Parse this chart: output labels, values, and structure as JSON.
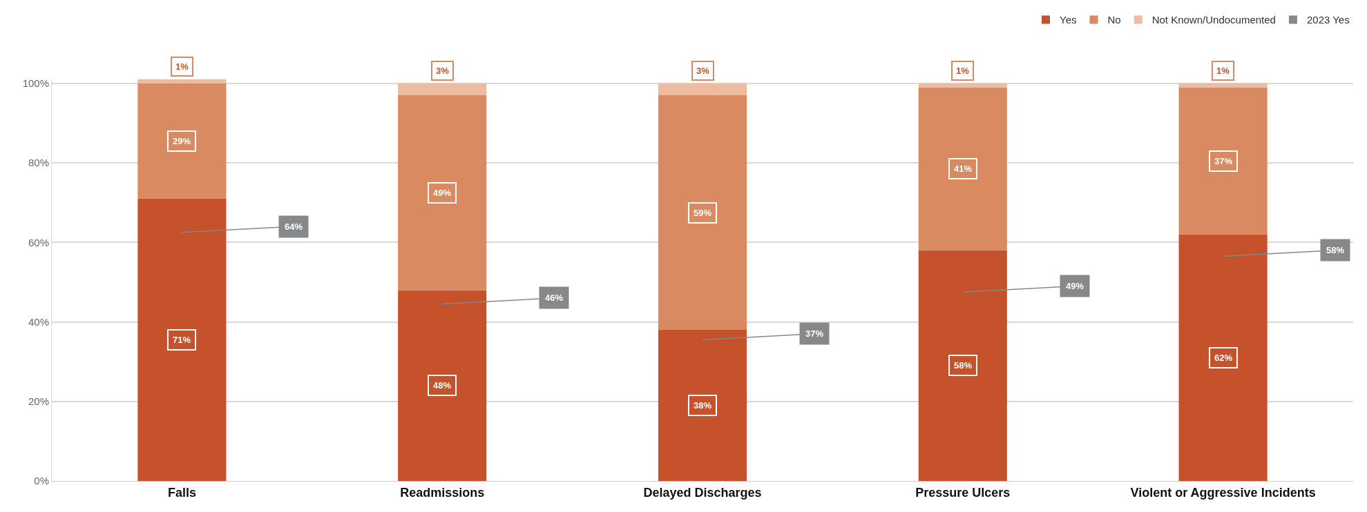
{
  "chart_data": {
    "type": "bar",
    "stacked": true,
    "categories": [
      "Falls",
      "Readmissions",
      "Delayed Discharges",
      "Pressure Ulcers",
      "Violent or Aggressive Incidents"
    ],
    "series": [
      {
        "name": "Yes",
        "color": "#c5522a",
        "values": [
          71,
          48,
          38,
          58,
          62
        ],
        "value_labels": [
          "71%",
          "48%",
          "38%",
          "58%",
          "62%"
        ]
      },
      {
        "name": "No",
        "color": "#d98a61",
        "values": [
          29,
          49,
          59,
          41,
          37
        ],
        "value_labels": [
          "29%",
          "49%",
          "59%",
          "41%",
          "37%"
        ]
      },
      {
        "name": "Not Known/Undocumented",
        "color": "#ecbba0",
        "values": [
          1,
          3,
          3,
          1,
          1
        ],
        "value_labels": [
          "1%",
          "3%",
          "3%",
          "1%",
          "1%"
        ]
      },
      {
        "name": "2023 Yes",
        "type": "scatter",
        "color": "#87888a",
        "values": [
          64,
          46,
          37,
          49,
          58
        ],
        "value_labels": [
          "64%",
          "46%",
          "37%",
          "49%",
          "58%"
        ]
      }
    ],
    "ylim": [
      0,
      101
    ],
    "yticks": [
      {
        "value": 0,
        "label": "0%"
      },
      {
        "value": 20,
        "label": "20%"
      },
      {
        "value": 40,
        "label": "40%"
      },
      {
        "value": 60,
        "label": "60%"
      },
      {
        "value": 80,
        "label": "80%"
      },
      {
        "value": 100,
        "label": "100%"
      }
    ],
    "grid": "y",
    "legend": "top right"
  }
}
